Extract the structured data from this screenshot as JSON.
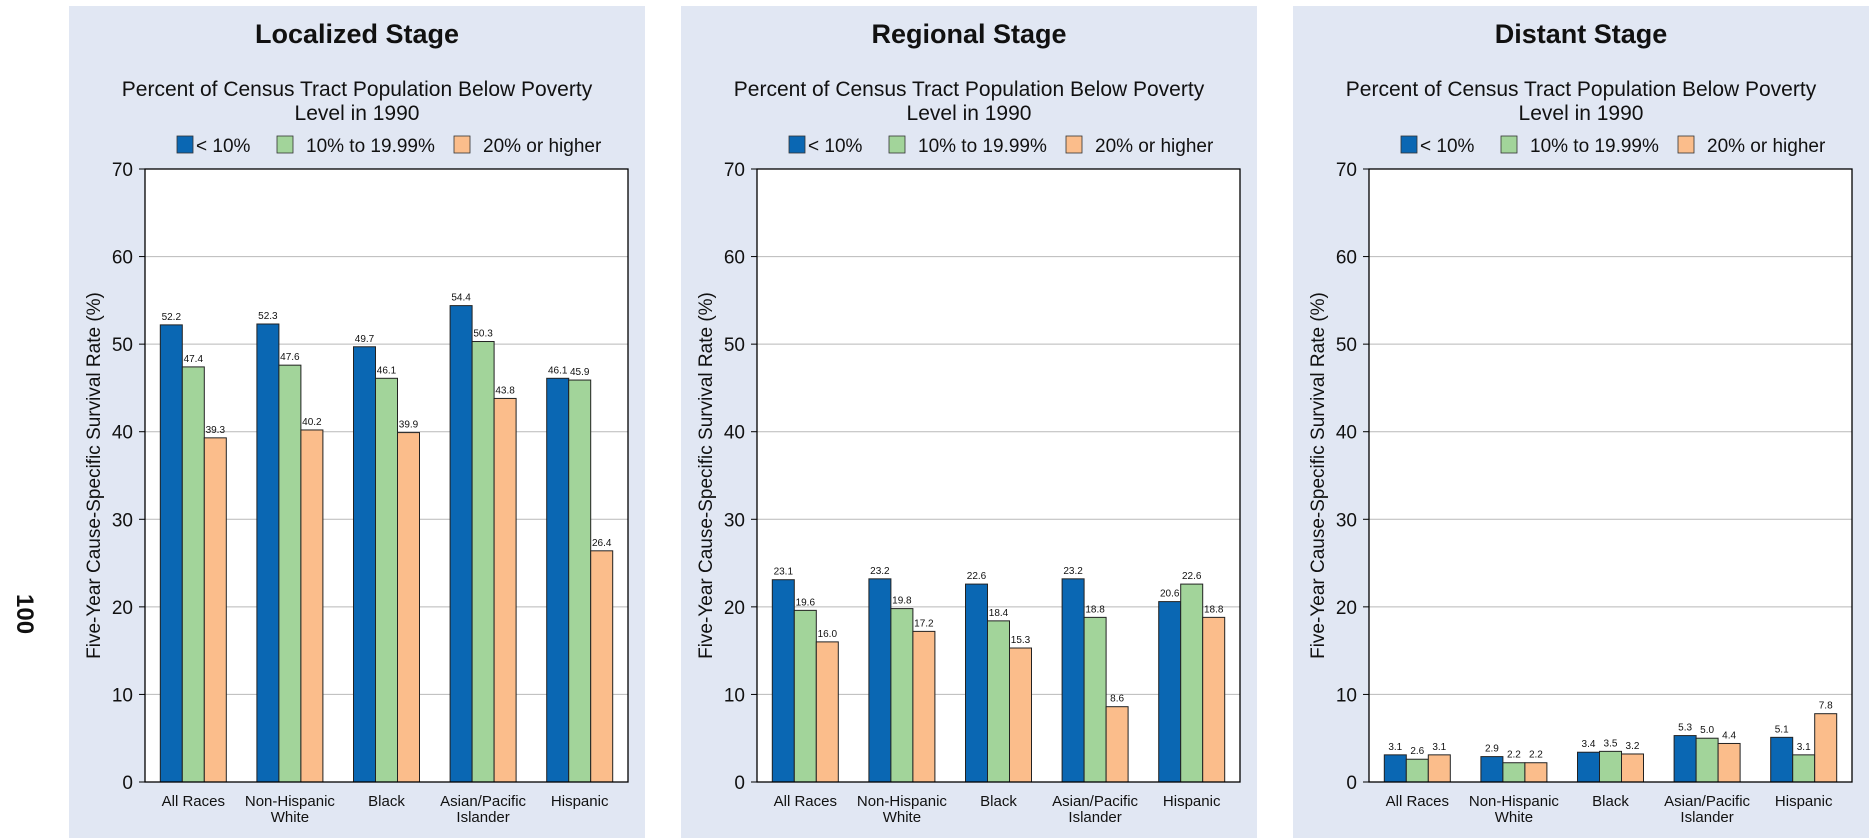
{
  "page_number": "100",
  "chart_data": [
    {
      "type": "bar",
      "title": "Localized Stage",
      "legend_title": "Percent of Census Tract Population Below Poverty Level in 1990",
      "legend_title_lines": [
        "Percent of Census Tract Population Below Poverty",
        "Level in 1990"
      ],
      "ylabel": "Five-Year Cause-Specific Survival Rate (%)",
      "ylim": [
        0,
        70
      ],
      "yticks": [
        0,
        10,
        20,
        30,
        40,
        50,
        60,
        70
      ],
      "grid": true,
      "legend_position": "top",
      "categories": [
        [
          "All Races"
        ],
        [
          "Non-Hispanic",
          "White"
        ],
        [
          "Black"
        ],
        [
          "Asian/Pacific",
          "Islander"
        ],
        [
          "Hispanic"
        ]
      ],
      "series": [
        {
          "name": "< 10%",
          "color": "#0a67b3",
          "values": [
            52.2,
            52.3,
            49.7,
            54.4,
            46.1
          ],
          "labels": [
            "52.2",
            "52.3",
            "49.7",
            "54.4",
            "46.1"
          ]
        },
        {
          "name": "10% to 19.99%",
          "color": "#a2d49a",
          "values": [
            47.4,
            47.6,
            46.1,
            50.3,
            45.9
          ],
          "labels": [
            "47.4",
            "47.6",
            "46.1",
            "50.3",
            "45.9"
          ]
        },
        {
          "name": "20% or higher",
          "color": "#fbbd8b",
          "values": [
            39.3,
            40.2,
            39.9,
            43.8,
            26.4
          ],
          "labels": [
            "39.3",
            "40.2",
            "39.9",
            "43.8",
            "26.4"
          ]
        }
      ]
    },
    {
      "type": "bar",
      "title": "Regional Stage",
      "legend_title": "Percent of Census Tract Population Below Poverty Level in 1990",
      "legend_title_lines": [
        "Percent of Census Tract Population Below Poverty",
        "Level in 1990"
      ],
      "ylabel": "Five-Year Cause-Specific Survival Rate (%)",
      "ylim": [
        0,
        70
      ],
      "yticks": [
        0,
        10,
        20,
        30,
        40,
        50,
        60,
        70
      ],
      "grid": true,
      "legend_position": "top",
      "categories": [
        [
          "All Races"
        ],
        [
          "Non-Hispanic",
          "White"
        ],
        [
          "Black"
        ],
        [
          "Asian/Pacific",
          "Islander"
        ],
        [
          "Hispanic"
        ]
      ],
      "series": [
        {
          "name": "< 10%",
          "color": "#0a67b3",
          "values": [
            23.1,
            23.2,
            22.6,
            23.2,
            20.6
          ],
          "labels": [
            "23.1",
            "23.2",
            "22.6",
            "23.2",
            "20.6"
          ]
        },
        {
          "name": "10% to 19.99%",
          "color": "#a2d49a",
          "values": [
            19.6,
            19.8,
            18.4,
            18.8,
            22.6
          ],
          "labels": [
            "19.6",
            "19.8",
            "18.4",
            "18.8",
            "22.6"
          ]
        },
        {
          "name": "20% or higher",
          "color": "#fbbd8b",
          "values": [
            16.0,
            17.2,
            15.3,
            8.6,
            18.8
          ],
          "labels": [
            "16.0",
            "17.2",
            "15.3",
            "8.6",
            "18.8"
          ]
        }
      ]
    },
    {
      "type": "bar",
      "title": "Distant Stage",
      "legend_title": "Percent of Census Tract Population Below Poverty Level in 1990",
      "legend_title_lines": [
        "Percent of Census Tract Population Below Poverty",
        "Level in 1990"
      ],
      "ylabel": "Five-Year Cause-Specific Survival Rate (%)",
      "ylim": [
        0,
        70
      ],
      "yticks": [
        0,
        10,
        20,
        30,
        40,
        50,
        60,
        70
      ],
      "grid": true,
      "legend_position": "top",
      "categories": [
        [
          "All Races"
        ],
        [
          "Non-Hispanic",
          "White"
        ],
        [
          "Black"
        ],
        [
          "Asian/Pacific",
          "Islander"
        ],
        [
          "Hispanic"
        ]
      ],
      "series": [
        {
          "name": "< 10%",
          "color": "#0a67b3",
          "values": [
            3.1,
            2.9,
            3.4,
            5.3,
            5.1
          ],
          "labels": [
            "3.1",
            "2.9",
            "3.4",
            "5.3",
            "5.1"
          ]
        },
        {
          "name": "10% to 19.99%",
          "color": "#a2d49a",
          "values": [
            2.6,
            2.2,
            3.5,
            5.0,
            3.1
          ],
          "labels": [
            "2.6",
            "2.2",
            "3.5",
            "5.0",
            "3.1"
          ]
        },
        {
          "name": "20% or higher",
          "color": "#fbbd8b",
          "values": [
            3.1,
            2.2,
            3.2,
            4.4,
            7.8
          ],
          "labels": [
            "3.1",
            "2.2",
            "3.2",
            "4.4",
            "7.8"
          ]
        }
      ]
    }
  ],
  "colors": {
    "panel_background": "#e1e7f3",
    "plot_background": "#ffffff",
    "gridline": "#b9b9b9"
  }
}
